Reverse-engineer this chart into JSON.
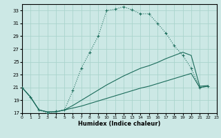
{
  "xlabel": "Humidex (Indice chaleur)",
  "bg_color": "#cce8e5",
  "grid_color": "#aad4cc",
  "line_color": "#1a6b5a",
  "xlim": [
    0,
    23
  ],
  "ylim": [
    17,
    34
  ],
  "yticks": [
    17,
    19,
    21,
    23,
    25,
    27,
    29,
    31,
    33
  ],
  "xticks": [
    0,
    1,
    2,
    3,
    4,
    5,
    6,
    7,
    8,
    9,
    10,
    11,
    12,
    13,
    14,
    15,
    16,
    17,
    18,
    19,
    20,
    21,
    22,
    23
  ],
  "line1_x": [
    0,
    1,
    2,
    3,
    4,
    5,
    6,
    7,
    8,
    9,
    10,
    11,
    12,
    13,
    14,
    15,
    16,
    17,
    18,
    19,
    20,
    21,
    22
  ],
  "line1_y": [
    21.0,
    19.5,
    17.5,
    17.0,
    17.3,
    17.5,
    20.5,
    24.0,
    26.5,
    29.0,
    33.0,
    33.2,
    33.6,
    33.1,
    32.5,
    32.5,
    31.0,
    29.5,
    27.5,
    26.0,
    24.0,
    21.0,
    21.2
  ],
  "line2_x": [
    0,
    1,
    2,
    3,
    4,
    5,
    6,
    7,
    8,
    9,
    10,
    11,
    12,
    13,
    14,
    15,
    16,
    17,
    18,
    19,
    20,
    21,
    22
  ],
  "line2_y": [
    21.0,
    19.5,
    17.5,
    17.2,
    17.2,
    17.5,
    17.8,
    18.1,
    18.5,
    18.9,
    19.3,
    19.7,
    20.1,
    20.5,
    20.9,
    21.2,
    21.6,
    22.0,
    22.4,
    22.8,
    23.2,
    21.0,
    21.2
  ],
  "line3_x": [
    0,
    1,
    2,
    3,
    4,
    5,
    6,
    7,
    8,
    9,
    10,
    11,
    12,
    13,
    14,
    15,
    16,
    17,
    18,
    19,
    20,
    21,
    22
  ],
  "line3_y": [
    21.0,
    19.5,
    17.5,
    17.2,
    17.2,
    17.5,
    18.2,
    19.0,
    19.8,
    20.6,
    21.4,
    22.1,
    22.8,
    23.4,
    24.0,
    24.4,
    24.9,
    25.5,
    26.0,
    26.5,
    26.0,
    21.2,
    21.3
  ]
}
